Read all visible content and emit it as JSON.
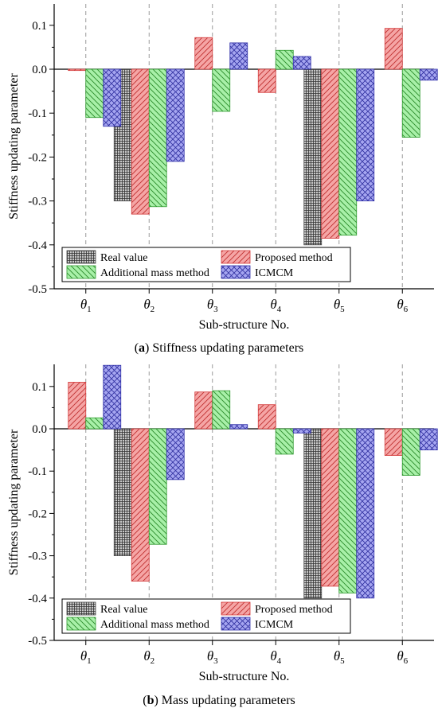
{
  "chart_data": [
    {
      "type": "bar",
      "panel_label": "(a)",
      "caption": "Stiffness updating parameters",
      "xlabel": "Sub-structure No.",
      "ylabel": "Stiffness updating parameter",
      "categories": [
        "θ1",
        "θ2",
        "θ3",
        "θ4",
        "θ5",
        "θ6"
      ],
      "ylim": [
        -0.5,
        0.15
      ],
      "yticks": [
        0.1,
        0.0,
        -0.1,
        -0.2,
        -0.3,
        -0.4,
        -0.5
      ],
      "ytick_labels": [
        "0.1",
        "0.0",
        "-0.1",
        "-0.2",
        "-0.3",
        "-0.4",
        "-0.5"
      ],
      "grid": "vertical dashed lines at categories",
      "legend_position": "bottom-left",
      "series": [
        {
          "name": "Real value",
          "values": [
            0,
            -0.3,
            0,
            0,
            -0.4,
            0
          ]
        },
        {
          "name": "Proposed method",
          "values": [
            -0.003,
            -0.33,
            0.072,
            -0.053,
            -0.385,
            0.093
          ]
        },
        {
          "name": "Additional mass method",
          "values": [
            -0.11,
            -0.313,
            -0.096,
            0.043,
            -0.378,
            -0.155
          ]
        },
        {
          "name": "ICMCM",
          "values": [
            -0.13,
            -0.21,
            0.06,
            0.029,
            -0.3,
            -0.025
          ]
        }
      ]
    },
    {
      "type": "bar",
      "panel_label": "(b)",
      "caption": "Mass updating parameters",
      "xlabel": "Sub-structure No.",
      "ylabel": "Stiffness updating parameter",
      "categories": [
        "θ1",
        "θ2",
        "θ3",
        "θ4",
        "θ5",
        "θ6"
      ],
      "ylim": [
        -0.5,
        0.15
      ],
      "yticks": [
        0.1,
        0.0,
        -0.1,
        -0.2,
        -0.3,
        -0.4,
        -0.5
      ],
      "ytick_labels": [
        "0.1",
        "0.0",
        "-0.1",
        "-0.2",
        "-0.3",
        "-0.4",
        "-0.5"
      ],
      "grid": "vertical dashed lines at categories",
      "legend_position": "bottom-left",
      "series": [
        {
          "name": "Real value",
          "values": [
            0,
            -0.3,
            0,
            0,
            -0.4,
            0
          ]
        },
        {
          "name": "Proposed method",
          "values": [
            0.11,
            -0.36,
            0.087,
            0.057,
            -0.372,
            -0.063
          ]
        },
        {
          "name": "Additional mass method",
          "values": [
            0.026,
            -0.273,
            0.09,
            -0.06,
            -0.388,
            -0.11
          ]
        },
        {
          "name": "ICMCM",
          "values": [
            0.15,
            -0.12,
            0.01,
            -0.01,
            -0.4,
            -0.05
          ]
        }
      ]
    }
  ],
  "series_colors": {
    "Real value": "#8c8c8c",
    "Proposed method": "#f4a3a3",
    "Additional mass method": "#a8f0a8",
    "ICMCM": "#a3a3ee"
  },
  "series_strokes": {
    "Real value": "#444444",
    "Proposed method": "#d43a3a",
    "Additional mass method": "#2e9a2e",
    "ICMCM": "#3232aa"
  }
}
